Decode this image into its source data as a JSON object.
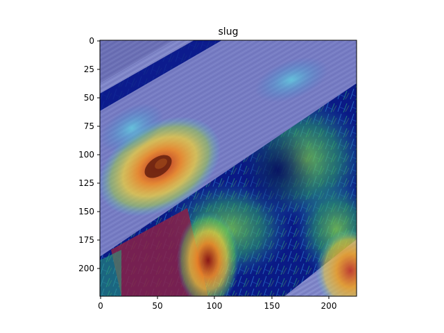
{
  "figure": {
    "title": "slug"
  },
  "axes": {
    "x_ticks": [
      "0",
      "50",
      "100",
      "150",
      "200"
    ],
    "y_ticks": [
      "0",
      "25",
      "50",
      "75",
      "100",
      "125",
      "150",
      "175",
      "200"
    ]
  },
  "image": {
    "description_free": true,
    "colors": {
      "wood_base": "#7f86c8",
      "wood_dark": "#3a3a8a",
      "grass_dark": "#0a0f7a",
      "grass_mid": "#1f6fb0",
      "grass_green": "#2fa86a",
      "grass_yellowgreen": "#9fcf45",
      "hot_yellow": "#f0d23a",
      "hot_orange": "#f08a24",
      "hot_red": "#b21d1d",
      "red_strip": "#a01c4f",
      "cyan_glow": "#46d0e0"
    }
  }
}
